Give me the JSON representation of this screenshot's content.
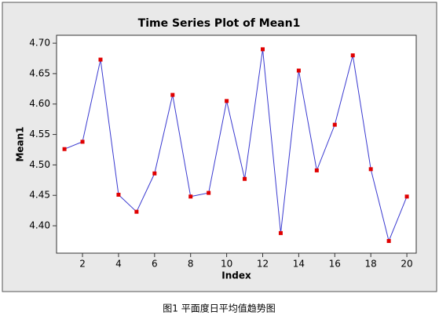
{
  "chart_data": {
    "type": "line",
    "title": "Time Series Plot of Mean1",
    "x_label": "Index",
    "y_label": "Mean1",
    "caption": "图1   平面度日平均值趋势图",
    "x": [
      1,
      2,
      3,
      4,
      5,
      6,
      7,
      8,
      9,
      10,
      11,
      12,
      13,
      14,
      15,
      16,
      17,
      18,
      19,
      20
    ],
    "values": [
      4.526,
      4.538,
      4.673,
      4.451,
      4.423,
      4.486,
      4.615,
      4.448,
      4.454,
      4.605,
      4.477,
      4.69,
      4.388,
      4.655,
      4.491,
      4.566,
      4.68,
      4.493,
      4.375,
      4.448
    ],
    "color": "#3a3ad0",
    "marker_color": "#e00000",
    "xlim": [
      0.56,
      20.52
    ],
    "xticks": [
      2,
      4,
      6,
      8,
      10,
      12,
      14,
      16,
      18,
      20
    ],
    "ylim": [
      4.355,
      4.713
    ],
    "yticks": [
      {
        "value": 4.4,
        "label": "4.40"
      },
      {
        "value": 4.45,
        "label": "4.45"
      },
      {
        "value": 4.5,
        "label": "4.50"
      },
      {
        "value": 4.55,
        "label": "4.55"
      },
      {
        "value": 4.6,
        "label": "4.60"
      },
      {
        "value": 4.65,
        "label": "4.65"
      },
      {
        "value": 4.7,
        "label": "4.70"
      }
    ]
  }
}
